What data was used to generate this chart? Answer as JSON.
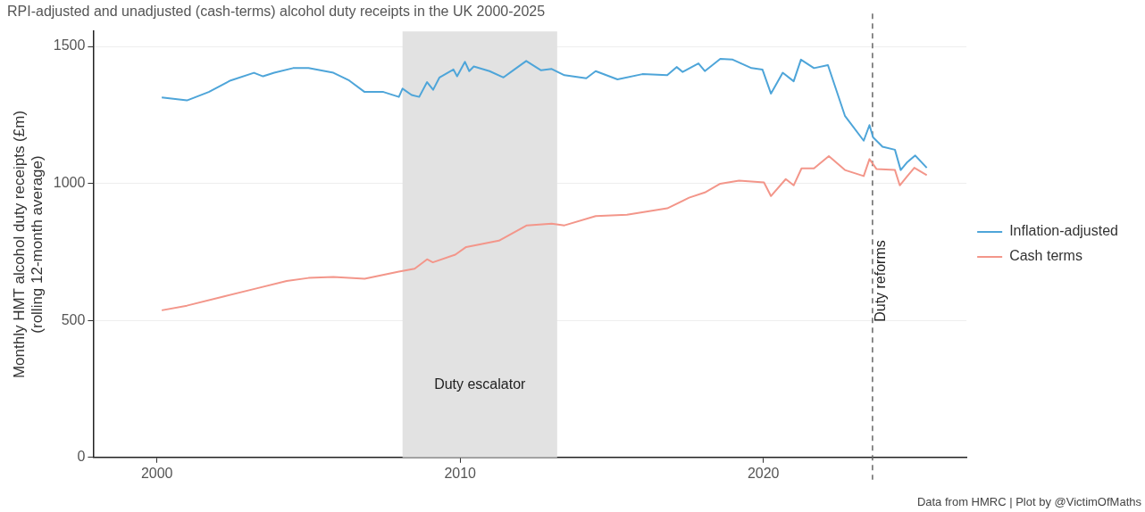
{
  "chart_data": {
    "type": "line",
    "title": "RPI-adjusted and unadjusted (cash-terms) alcohol duty receipts in the UK 2000-2025",
    "ylabel": "Monthly HMT alcohol duty receipts (£m)\n(rolling 12-month average)",
    "xlim": [
      1997.9,
      2026.7
    ],
    "xticks": [
      2000,
      2010,
      2020
    ],
    "ylim": [
      0,
      1555
    ],
    "yticks": [
      0,
      500,
      1000,
      1500
    ],
    "grid": "y",
    "legend": "right",
    "marker": "none",
    "line_style": "solid",
    "series": [
      {
        "name": "Inflation-adjusted",
        "color": "#4ea5d9",
        "x": [
          2000.16,
          2000.99,
          2001.71,
          2002.43,
          2003.2,
          2003.5,
          2003.87,
          2004.49,
          2005.0,
          2005.82,
          2006.34,
          2006.85,
          2007.47,
          2007.98,
          2008.1,
          2008.4,
          2008.65,
          2008.91,
          2009.11,
          2009.32,
          2009.78,
          2009.9,
          2010.16,
          2010.3,
          2010.45,
          2010.97,
          2011.43,
          2011.79,
          2012.18,
          2012.67,
          2013.02,
          2013.44,
          2014.16,
          2014.47,
          2015.19,
          2016.01,
          2016.83,
          2017.14,
          2017.34,
          2017.86,
          2018.07,
          2018.58,
          2018.99,
          2019.61,
          2019.97,
          2020.25,
          2020.64,
          2021.0,
          2021.24,
          2021.67,
          2022.13,
          2022.69,
          2023.31,
          2023.5,
          2023.62,
          2023.93,
          2024.34,
          2024.53,
          2024.75,
          2025.01,
          2025.39
        ],
        "values": [
          1314,
          1303,
          1334,
          1376,
          1404,
          1391,
          1404,
          1421,
          1421,
          1404,
          1376,
          1334,
          1334,
          1316,
          1346,
          1323,
          1316,
          1370,
          1342,
          1387,
          1416,
          1391,
          1444,
          1410,
          1427,
          1410,
          1387,
          1416,
          1447,
          1413,
          1418,
          1395,
          1384,
          1410,
          1380,
          1399,
          1395,
          1425,
          1407,
          1438,
          1410,
          1455,
          1452,
          1421,
          1416,
          1328,
          1404,
          1373,
          1452,
          1421,
          1432,
          1247,
          1156,
          1213,
          1168,
          1134,
          1123,
          1049,
          1078,
          1102,
          1057
        ]
      },
      {
        "name": "Cash terms",
        "color": "#f3968a",
        "x": [
          2000.16,
          2000.99,
          2002.22,
          2003.25,
          2004.28,
          2005.0,
          2005.82,
          2006.85,
          2007.98,
          2008.5,
          2008.91,
          2009.1,
          2009.84,
          2010.2,
          2011.28,
          2012.2,
          2013.02,
          2013.44,
          2014.47,
          2015.5,
          2016.83,
          2017.55,
          2018.07,
          2018.58,
          2019.2,
          2020.02,
          2020.25,
          2020.74,
          2021.0,
          2021.26,
          2021.67,
          2022.16,
          2022.69,
          2023.31,
          2023.5,
          2023.73,
          2024.34,
          2024.5,
          2024.75,
          2024.98,
          2025.39
        ],
        "values": [
          537,
          554,
          588,
          616,
          644,
          655,
          659,
          652,
          678,
          689,
          723,
          712,
          740,
          768,
          791,
          847,
          853,
          847,
          881,
          886,
          909,
          948,
          967,
          999,
          1010,
          1004,
          954,
          1016,
          993,
          1055,
          1055,
          1100,
          1049,
          1027,
          1089,
          1053,
          1049,
          993,
          1027,
          1057,
          1030
        ]
      }
    ],
    "bands": [
      {
        "axis": "x",
        "from": 2008.1,
        "to": 2013.2,
        "label": "Duty escalator",
        "color": "#e2e2e2"
      }
    ],
    "ref_lines": [
      {
        "axis": "x",
        "value": 2023.6,
        "label": "Duty reforms",
        "line_style": "dashed",
        "color": "#666666"
      }
    ],
    "annotations": [
      "Data from HMRC | Plot by @VictimOfMaths"
    ]
  }
}
